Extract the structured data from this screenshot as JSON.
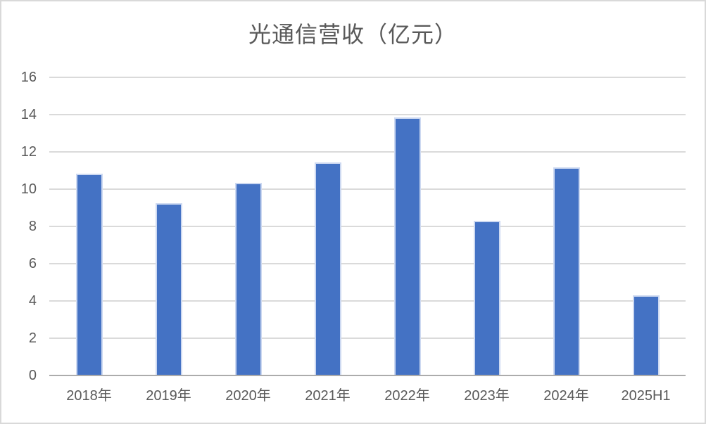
{
  "chart_data": {
    "type": "bar",
    "title": "光通信营收（亿元）",
    "categories": [
      "2018年",
      "2019年",
      "2020年",
      "2021年",
      "2022年",
      "2023年",
      "2024年",
      "2025H1"
    ],
    "values": [
      10.8,
      9.2,
      10.3,
      11.4,
      13.8,
      8.25,
      11.15,
      4.25
    ],
    "xlabel": "",
    "ylabel": "",
    "ylim": [
      0,
      16
    ],
    "yticks": [
      0,
      2,
      4,
      6,
      8,
      10,
      12,
      14,
      16
    ],
    "grid": true,
    "legend": false,
    "colors": {
      "bar_fill": "#4472c4",
      "bar_border": "#cdd9f1",
      "gridline": "#dadada",
      "axis_line": "#acacac",
      "text": "#595959",
      "frame_border": "#d9d9d9",
      "background": "#ffffff"
    }
  }
}
